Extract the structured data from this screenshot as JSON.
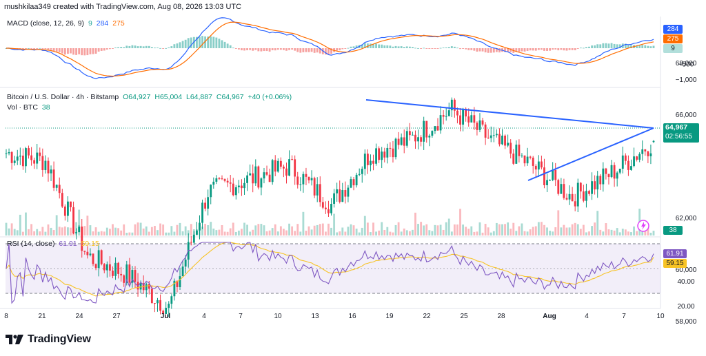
{
  "header": {
    "created_by": "mushkilaa349 created with TradingView.com, Aug 08, 2026 13:03 UTC"
  },
  "macd": {
    "label": "MACD (close, 12, 26, 9)",
    "hist_value": "9",
    "macd_value": "284",
    "signal_value": "275",
    "axis": [
      "500",
      "−500",
      "−1,000"
    ],
    "tags": [
      "284",
      "275",
      "9"
    ]
  },
  "main": {
    "symbol": "Bitcoin / U.S. Dollar · 4h · Bitstamp",
    "open": "O64,927",
    "high": "H65,004",
    "low": "L64,887",
    "close": "C64,967",
    "change": "+40 (+0.06%)",
    "vol_label": "Vol · BTC",
    "vol_value": "38",
    "vol_tag": "38",
    "price_tag": "64,967",
    "countdown": "02:56:55",
    "axis": [
      "68,000",
      "66,000",
      "62,000",
      "60,000",
      "58,000"
    ]
  },
  "rsi": {
    "label": "RSI (14, close)",
    "value": "61.91",
    "ma_value": "59.15",
    "axis": [
      "40.00",
      "20.00"
    ],
    "tags": [
      "61.91",
      "59.15"
    ]
  },
  "x_axis": [
    "8",
    "21",
    "24",
    "27",
    "Jul",
    "4",
    "7",
    "10",
    "13",
    "16",
    "19",
    "22",
    "25",
    "28",
    "Aug",
    "4",
    "7",
    "10"
  ],
  "brand": "TradingView",
  "colors": {
    "up": "#089981",
    "down": "#f23645",
    "macd": "#2962ff",
    "signal": "#ff6d00",
    "trendline": "#2962ff",
    "rsi": "#7e57c2",
    "rsi_ma": "#f7c325"
  },
  "chart_data": {
    "type": "candlestick",
    "instrument": "Bitcoin / U.S. Dollar",
    "timeframe": "4h",
    "exchange": "Bitstamp",
    "x_ticks": [
      "8",
      "21",
      "24",
      "27",
      "Jul",
      "4",
      "7",
      "10",
      "13",
      "16",
      "19",
      "22",
      "25",
      "28",
      "Aug",
      "4",
      "7",
      "10"
    ],
    "price_ticks": [
      68000,
      66000,
      62000,
      60000,
      58000
    ],
    "ohlc_last": {
      "open": 64927,
      "high": 65004,
      "low": 64887,
      "close": 64967
    },
    "approx_close_path": [
      {
        "x": "8",
        "price": 64500
      },
      {
        "x": "21",
        "price": 64200
      },
      {
        "x": "24",
        "price": 60500
      },
      {
        "x": "27",
        "price": 59800
      },
      {
        "x": "Jul",
        "price": 58500
      },
      {
        "x": "4",
        "price": 63000
      },
      {
        "x": "7",
        "price": 63500
      },
      {
        "x": "10",
        "price": 64000
      },
      {
        "x": "13",
        "price": 62500
      },
      {
        "x": "16",
        "price": 64500
      },
      {
        "x": "19",
        "price": 65000
      },
      {
        "x": "22",
        "price": 66200
      },
      {
        "x": "25",
        "price": 65000
      },
      {
        "x": "28",
        "price": 64000
      },
      {
        "x": "Aug",
        "price": 62800
      },
      {
        "x": "4",
        "price": 63800
      },
      {
        "x": "7",
        "price": 64967
      }
    ],
    "volume_last": 38,
    "macd": {
      "macd": 284,
      "signal": 275,
      "histogram": 9,
      "ticks": [
        500,
        -500,
        -1000
      ]
    },
    "rsi": {
      "value": 61.91,
      "ma": 59.15,
      "ticks": [
        40,
        20
      ],
      "bands": [
        30,
        70
      ]
    }
  }
}
